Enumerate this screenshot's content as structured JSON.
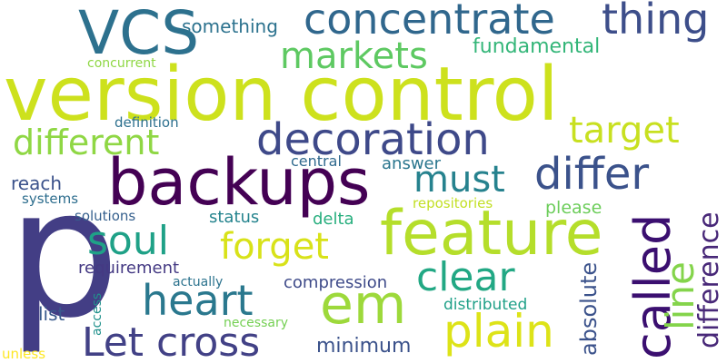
{
  "words": [
    {
      "text": "version control",
      "color": "#cde11d"
    },
    {
      "text": "p",
      "color": "#433e85"
    },
    {
      "text": "backups",
      "color": "#440154"
    },
    {
      "text": "feature",
      "color": "#b5de2b"
    },
    {
      "text": "concentrate",
      "color": "#30678d"
    },
    {
      "text": "thing",
      "color": "#3d4e8a"
    },
    {
      "text": "VCS",
      "color": "#2d718e"
    },
    {
      "text": "markets",
      "color": "#5ec962"
    },
    {
      "text": "decoration",
      "color": "#3e4989"
    },
    {
      "text": "different",
      "color": "#8fd744"
    },
    {
      "text": "differ",
      "color": "#3b528b"
    },
    {
      "text": "target",
      "color": "#c8e020"
    },
    {
      "text": "must",
      "color": "#26828e"
    },
    {
      "text": "forget",
      "color": "#d8e219"
    },
    {
      "text": "soul",
      "color": "#1fa187"
    },
    {
      "text": "clear",
      "color": "#22a884"
    },
    {
      "text": "heart",
      "color": "#2a788e"
    },
    {
      "text": "em",
      "color": "#9dd93b"
    },
    {
      "text": "Let cross",
      "color": "#424186"
    },
    {
      "text": "plain",
      "color": "#dde318"
    },
    {
      "text": "called",
      "color": "#3b0f70"
    },
    {
      "text": "line",
      "color": "#84d44b"
    },
    {
      "text": "difference",
      "color": "#482878"
    },
    {
      "text": "absolute",
      "color": "#3b528b"
    },
    {
      "text": "something",
      "color": "#2c728e"
    },
    {
      "text": "fundamental",
      "color": "#34b679"
    },
    {
      "text": "concurrent",
      "color": "#8fd744"
    },
    {
      "text": "definition",
      "color": "#2d708e"
    },
    {
      "text": "central",
      "color": "#306a8e"
    },
    {
      "text": "answer",
      "color": "#2a768e"
    },
    {
      "text": "reach",
      "color": "#3b528b"
    },
    {
      "text": "systems",
      "color": "#2e6e8e"
    },
    {
      "text": "repositories",
      "color": "#c2df23"
    },
    {
      "text": "please",
      "color": "#6ccd5a"
    },
    {
      "text": "solutions",
      "color": "#355f8d"
    },
    {
      "text": "status",
      "color": "#25848e"
    },
    {
      "text": "delta",
      "color": "#29af7f"
    },
    {
      "text": "requirement",
      "color": "#443983"
    },
    {
      "text": "actually",
      "color": "#2c738e"
    },
    {
      "text": "compression",
      "color": "#3e4a89"
    },
    {
      "text": "list",
      "color": "#38598c"
    },
    {
      "text": "access",
      "color": "#21918c"
    },
    {
      "text": "distributed",
      "color": "#1fa088"
    },
    {
      "text": "necessary",
      "color": "#75d054"
    },
    {
      "text": "minimum",
      "color": "#3b528b"
    },
    {
      "text": "unless",
      "color": "#fde725"
    }
  ]
}
